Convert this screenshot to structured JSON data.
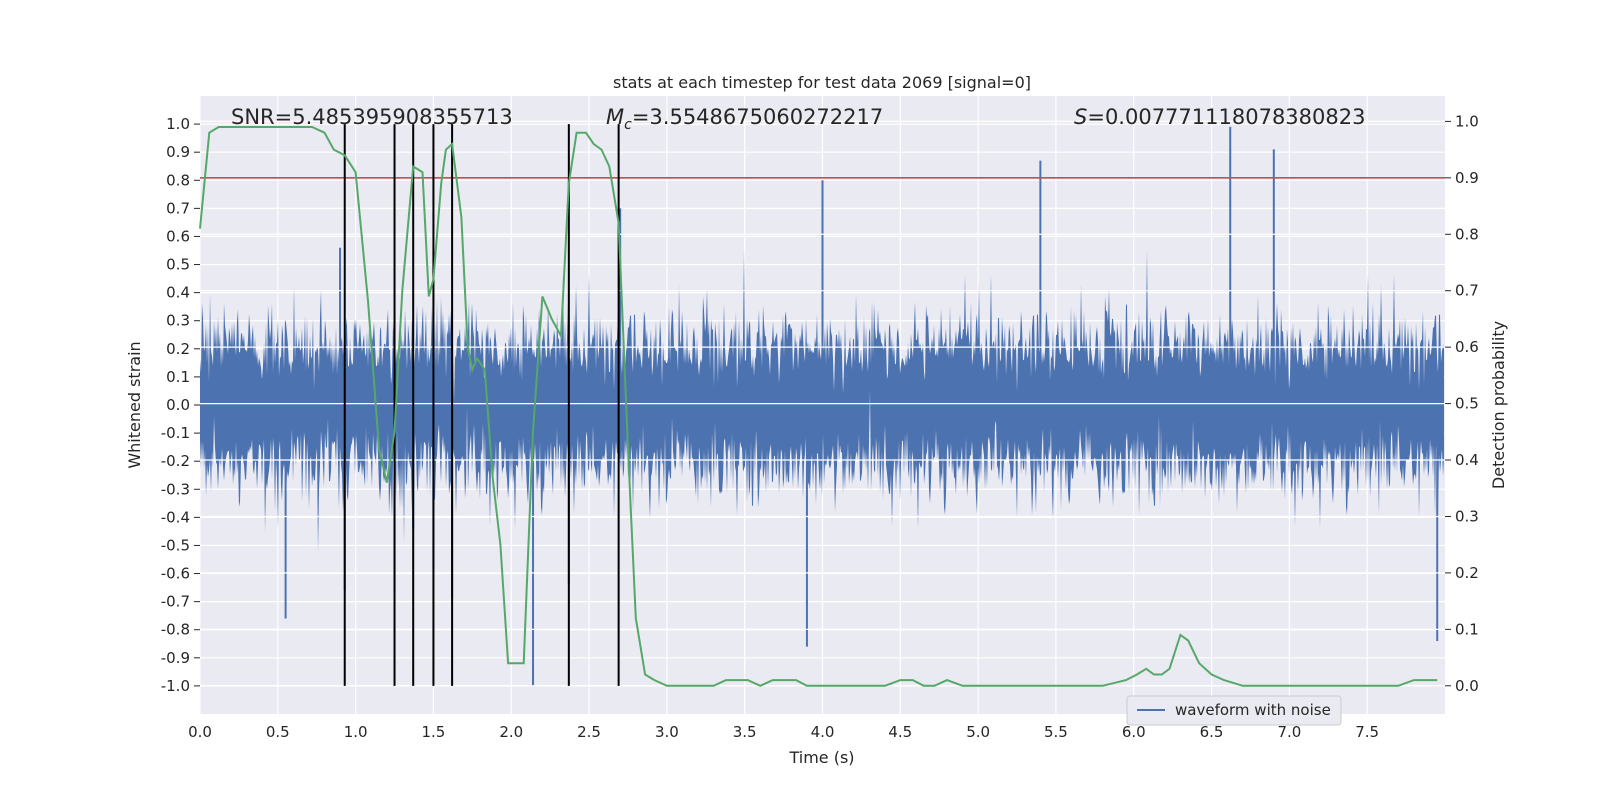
{
  "chart_data": {
    "type": "line",
    "title": "stats at each timestep for test data 2069 [signal=0]",
    "xlabel": "Time (s)",
    "ylabel": "Whitened strain",
    "y2label": "Detection probability",
    "xlim": [
      0,
      8
    ],
    "ylim": [
      -1.1,
      1.1
    ],
    "y2lim": [
      -0.05,
      1.045
    ],
    "xticks": [
      "0.0",
      "0.5",
      "1.0",
      "1.5",
      "2.0",
      "2.5",
      "3.0",
      "3.5",
      "4.0",
      "4.5",
      "5.0",
      "5.5",
      "6.0",
      "6.5",
      "7.0",
      "7.5"
    ],
    "yticks": [
      "1.0",
      "0.9",
      "0.8",
      "0.7",
      "0.6",
      "0.5",
      "0.4",
      "0.3",
      "0.2",
      "0.1",
      "0.0",
      "-0.1",
      "-0.2",
      "-0.3",
      "-0.4",
      "-0.5",
      "-0.6",
      "-0.7",
      "-0.8",
      "-0.9",
      "-1.0"
    ],
    "y2ticks": [
      "1.0",
      "0.9",
      "0.8",
      "0.7",
      "0.6",
      "0.5",
      "0.4",
      "0.3",
      "0.2",
      "0.1",
      "0.0"
    ],
    "grid": true,
    "legend": {
      "placement": "lower-center-right",
      "entries": [
        "waveform with noise"
      ]
    },
    "annotations": {
      "snr": "SNR=5.485395908355713",
      "mc_symbol": "M",
      "mc_sub": "c",
      "mc_value": "=3.5548675060272217",
      "s_symbol": "S",
      "s_value": "=0.007771118078380823"
    },
    "threshold": {
      "axis": "right",
      "value": 0.9,
      "color": "#c44e52"
    },
    "vlines": {
      "x": [
        0.93,
        1.25,
        1.37,
        1.5,
        1.62,
        2.37,
        2.69
      ],
      "y_range": [
        -1.0,
        1.0
      ],
      "color": "#000000"
    },
    "series": [
      {
        "name": "waveform with noise",
        "axis": "left",
        "color": "#4c72b0",
        "sample_rate": 2048,
        "noise_sigma": 0.13,
        "peak_x": [
          0.55,
          0.93,
          1.25,
          1.37,
          1.5,
          1.62,
          2.14,
          2.37,
          3.9,
          4.0,
          5.4,
          6.62,
          6.9,
          7.95,
          0.9,
          2.7
        ],
        "peak_y": [
          -0.76,
          -0.66,
          -0.66,
          -0.44,
          -0.58,
          -0.69,
          -1.0,
          -0.64,
          -0.86,
          0.8,
          0.87,
          0.99,
          0.91,
          -0.84,
          0.56,
          0.7
        ]
      },
      {
        "name": "detection probability",
        "axis": "right",
        "color": "#55a868",
        "x": [
          0.0,
          0.06,
          0.12,
          0.2,
          0.3,
          0.45,
          0.6,
          0.72,
          0.8,
          0.86,
          0.93,
          1.0,
          1.08,
          1.15,
          1.2,
          1.25,
          1.3,
          1.37,
          1.43,
          1.47,
          1.5,
          1.55,
          1.58,
          1.62,
          1.68,
          1.72,
          1.75,
          1.78,
          1.83,
          1.88,
          1.93,
          1.98,
          2.03,
          2.08,
          2.14,
          2.2,
          2.26,
          2.32,
          2.37,
          2.42,
          2.48,
          2.53,
          2.58,
          2.63,
          2.69,
          2.75,
          2.8,
          2.86,
          2.92,
          3.0,
          3.1,
          3.2,
          3.3,
          3.38,
          3.45,
          3.52,
          3.6,
          3.68,
          3.75,
          3.83,
          3.9,
          4.0,
          4.1,
          4.2,
          4.3,
          4.4,
          4.5,
          4.58,
          4.65,
          4.72,
          4.8,
          4.9,
          5.0,
          5.2,
          5.4,
          5.6,
          5.8,
          5.95,
          6.02,
          6.08,
          6.13,
          6.18,
          6.23,
          6.3,
          6.35,
          6.42,
          6.5,
          6.58,
          6.7,
          6.9,
          7.1,
          7.3,
          7.5,
          7.7,
          7.8,
          7.9,
          7.95
        ],
        "y": [
          0.81,
          0.98,
          0.99,
          0.99,
          0.99,
          0.99,
          0.99,
          0.99,
          0.98,
          0.95,
          0.94,
          0.91,
          0.68,
          0.42,
          0.36,
          0.45,
          0.7,
          0.92,
          0.91,
          0.69,
          0.72,
          0.89,
          0.95,
          0.96,
          0.83,
          0.6,
          0.56,
          0.58,
          0.56,
          0.37,
          0.25,
          0.04,
          0.04,
          0.04,
          0.45,
          0.69,
          0.65,
          0.62,
          0.89,
          0.98,
          0.98,
          0.96,
          0.95,
          0.92,
          0.82,
          0.42,
          0.12,
          0.02,
          0.01,
          0.0,
          0.0,
          0.0,
          0.0,
          0.01,
          0.01,
          0.01,
          0.0,
          0.01,
          0.01,
          0.01,
          0.0,
          0.0,
          0.0,
          0.0,
          0.0,
          0.0,
          0.01,
          0.01,
          0.0,
          0.0,
          0.01,
          0.0,
          0.0,
          0.0,
          0.0,
          0.0,
          0.0,
          0.01,
          0.02,
          0.03,
          0.02,
          0.02,
          0.03,
          0.09,
          0.08,
          0.04,
          0.02,
          0.01,
          0.0,
          0.0,
          0.0,
          0.0,
          0.0,
          0.0,
          0.01,
          0.01,
          0.01
        ]
      }
    ]
  }
}
